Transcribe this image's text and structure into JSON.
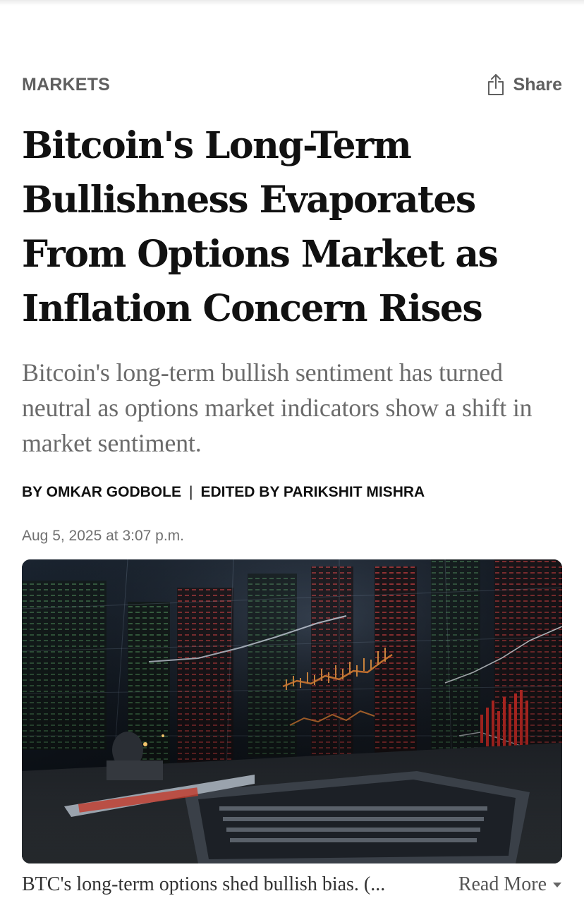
{
  "article": {
    "section": "MARKETS",
    "share_label": "Share",
    "headline": "Bitcoin's Long-Term Bullishness Evaporates From Options Market as Inflation Concern Rises",
    "dek": "Bitcoin's long-term bullish sentiment has turned neutral as options market indicators show a shift in market sentiment.",
    "byline": {
      "author": "BY OMKAR GODBOLE",
      "separator": "|",
      "editor": "EDITED BY PARIKSHIT MISHRA"
    },
    "date": "Aug 5, 2025 at 3:07 p.m.",
    "image": {
      "caption": "BTC's long-term options shed bullish bias. (...",
      "read_more_label": "Read More"
    }
  },
  "icons": {
    "share": "share-icon",
    "read_more": "caret-down-icon"
  },
  "colors": {
    "section_label": "#5f5f5f",
    "headline": "#111111",
    "dek": "#6b6b6b",
    "byline": "#111111",
    "date": "#707070"
  }
}
